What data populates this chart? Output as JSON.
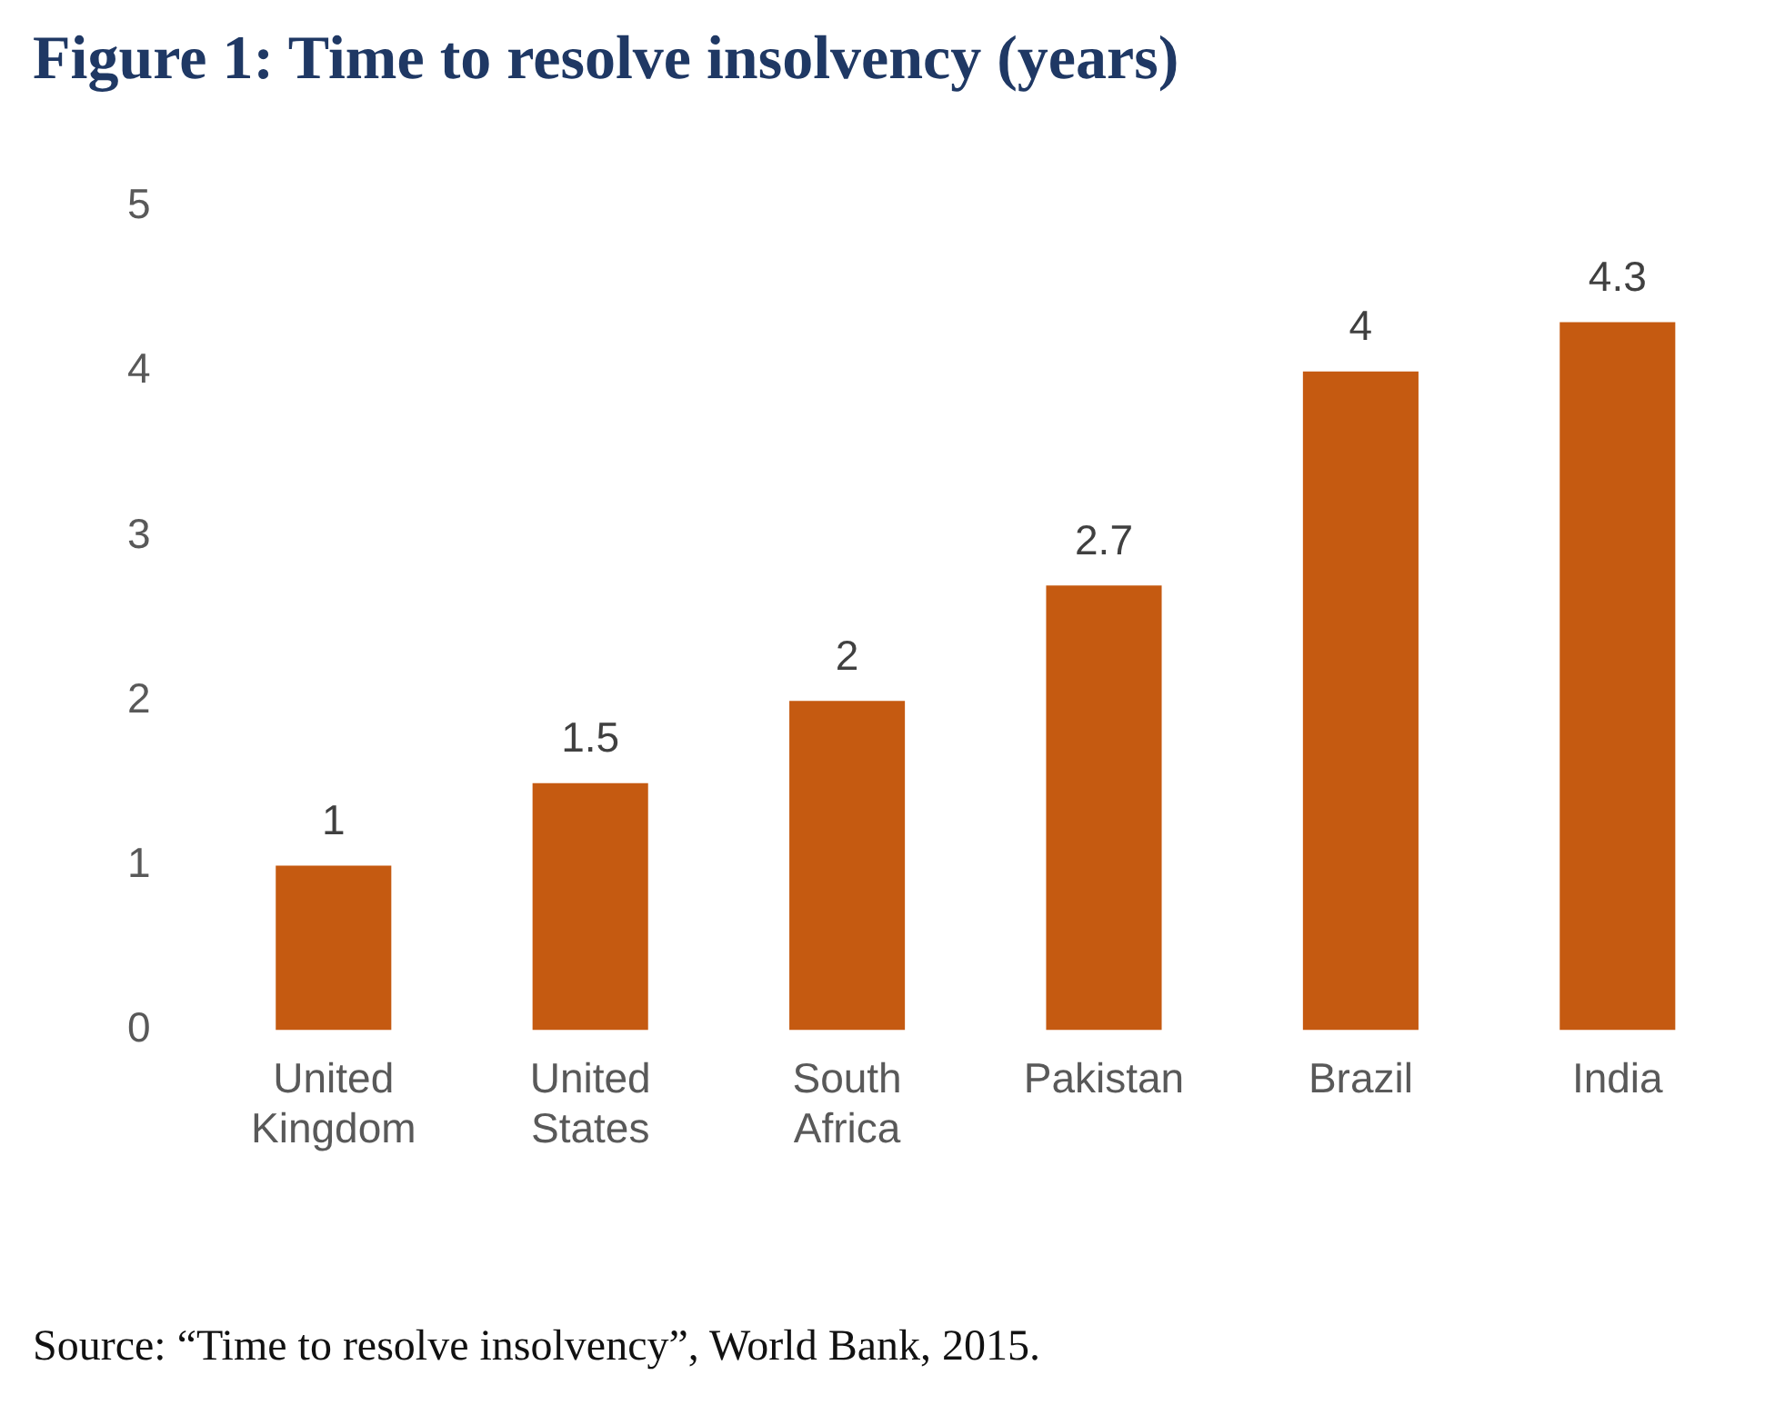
{
  "chart_data": {
    "type": "bar",
    "title": "Figure 1: Time to resolve insolvency (years)",
    "categories": [
      "United Kingdom",
      "United States",
      "South Africa",
      "Pakistan",
      "Brazil",
      "India"
    ],
    "values": [
      1,
      1.5,
      2,
      2.7,
      4,
      4.3
    ],
    "color": "#c55a11",
    "ylim": [
      0,
      5
    ],
    "yticks": [
      0,
      1,
      2,
      3,
      4,
      5
    ],
    "grid": false,
    "legend": false,
    "data_labels": true,
    "annotations": [
      "Source: “Time to resolve insolvency”, World Bank, 2015."
    ]
  }
}
